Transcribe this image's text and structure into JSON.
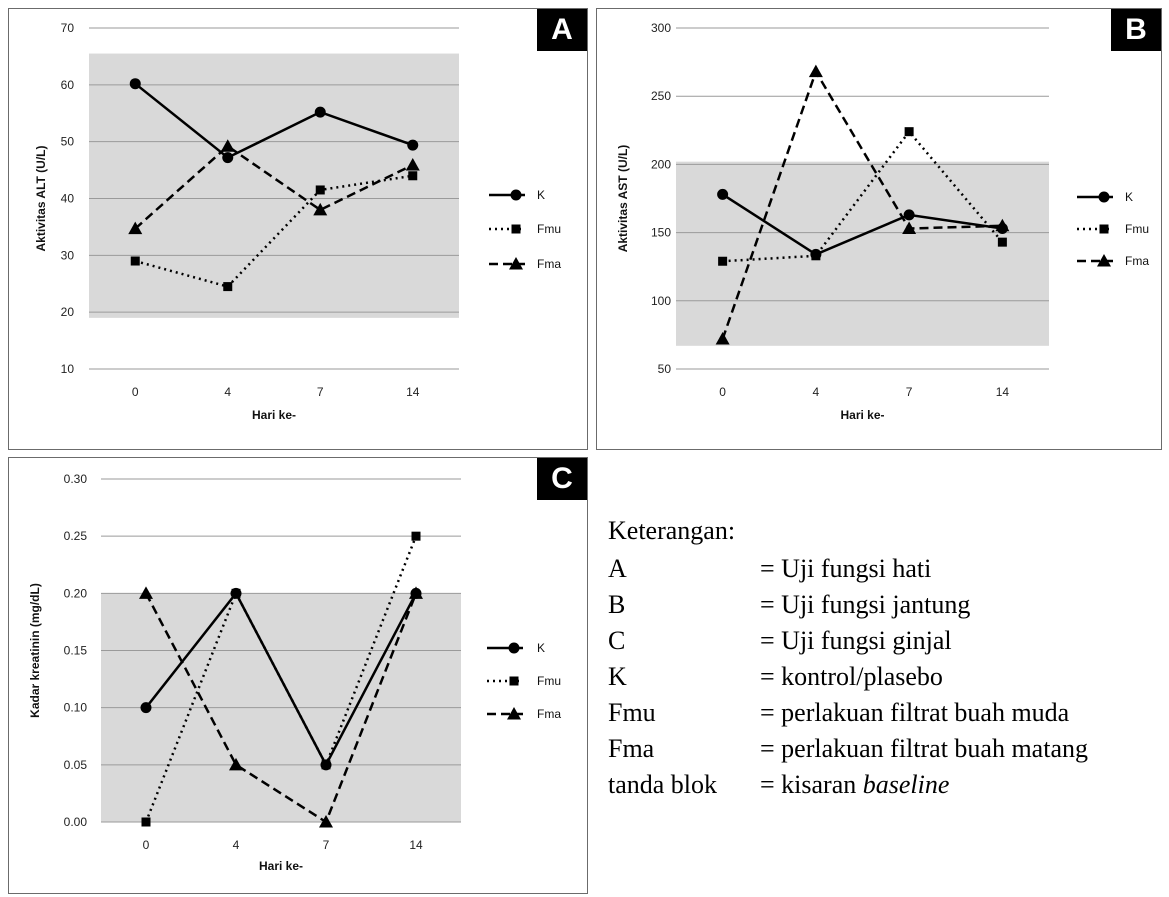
{
  "chart_data": [
    {
      "type": "line",
      "panel_label": "A",
      "ylabel": "Aktivitas ALT (U/L)",
      "xlabel": "Hari ke-",
      "categories": [
        "0",
        "4",
        "7",
        "14"
      ],
      "ylim": [
        10,
        70
      ],
      "yticks": [
        10,
        20,
        30,
        40,
        50,
        60,
        70
      ],
      "baseline_band": [
        19,
        65.5
      ],
      "grid": true,
      "legend_position": "right",
      "series": [
        {
          "name": "K",
          "values": [
            60.2,
            47.2,
            55.2,
            49.4
          ]
        },
        {
          "name": "Fmu",
          "values": [
            29,
            24.5,
            41.5,
            44
          ]
        },
        {
          "name": "Fma",
          "values": [
            34.7,
            49.2,
            38,
            45.9
          ]
        }
      ]
    },
    {
      "type": "line",
      "panel_label": "B",
      "ylabel": "Aktivitas AST (U/L)",
      "xlabel": "Hari ke-",
      "categories": [
        "0",
        "4",
        "7",
        "14"
      ],
      "ylim": [
        50,
        300
      ],
      "yticks": [
        50,
        100,
        150,
        200,
        250,
        300
      ],
      "baseline_band": [
        67,
        202
      ],
      "grid": true,
      "legend_position": "right",
      "series": [
        {
          "name": "K",
          "values": [
            178,
            134,
            163,
            153
          ]
        },
        {
          "name": "Fmu",
          "values": [
            129,
            133,
            224,
            143
          ]
        },
        {
          "name": "Fma",
          "values": [
            72,
            268,
            153,
            155
          ]
        }
      ]
    },
    {
      "type": "line",
      "panel_label": "C",
      "ylabel": "Kadar kreatinin (mg/dL)",
      "xlabel": "Hari ke-",
      "categories": [
        "0",
        "4",
        "7",
        "14"
      ],
      "ylim": [
        0,
        0.3
      ],
      "yticks": [
        "0.00",
        "0.05",
        "0.10",
        "0.15",
        "0.20",
        "0.25",
        "0.30"
      ],
      "baseline_band": [
        0,
        0.2
      ],
      "grid": true,
      "legend_position": "right",
      "series": [
        {
          "name": "K",
          "values": [
            0.1,
            0.2,
            0.05,
            0.2
          ]
        },
        {
          "name": "Fmu",
          "values": [
            0.0,
            0.2,
            0.05,
            0.25
          ]
        },
        {
          "name": "Fma",
          "values": [
            0.2,
            0.05,
            0.0,
            0.2
          ]
        }
      ]
    }
  ],
  "series_styles": {
    "K": {
      "dash": "solid",
      "marker": "circle"
    },
    "Fmu": {
      "dash": "dotted",
      "marker": "square"
    },
    "Fma": {
      "dash": "dashed",
      "marker": "triangle"
    }
  },
  "colors": {
    "band": "#d9d9d9",
    "grid": "#9a9a9a",
    "line": "#000000",
    "border": "#6b6b6b"
  },
  "keterangan": {
    "title": "Keterangan:",
    "rows": [
      {
        "key": "A",
        "value": "= Uji  fungsi  hati"
      },
      {
        "key": "B",
        "value": "= Uji  fungsi  jantung"
      },
      {
        "key": "C",
        "value": "= Uji  fungsi  ginjal"
      },
      {
        "key": "K",
        "value": "= kontrol/plasebo"
      },
      {
        "key": "Fmu",
        "value": "= perlakuan filtrat buah muda"
      },
      {
        "key": "Fma",
        "value": "= perlakuan filtrat buah matang"
      },
      {
        "key": "tanda blok",
        "value": "= kisaran ",
        "value_italic": "baseline"
      }
    ]
  }
}
